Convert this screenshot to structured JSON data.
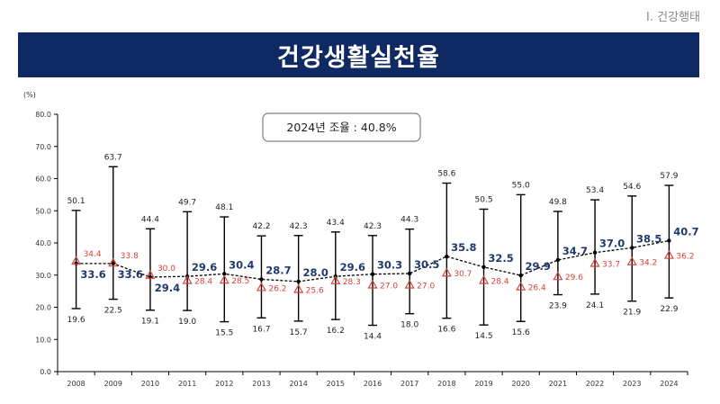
{
  "section_label": "Ⅰ. 건강행태",
  "colors": {
    "title_bg": "#0f2a63",
    "main_series": "#1f3a6e",
    "sub_series": "#d9413a",
    "errorbar": "#000000"
  },
  "chart_data": {
    "type": "line",
    "title": "건강생활실천율",
    "annotation": "2024년 조율 : 40.8%",
    "ylabel": "(%)",
    "ylim": [
      0,
      80
    ],
    "yticks": [
      "0.0",
      "10.0",
      "20.0",
      "30.0",
      "40.0",
      "50.0",
      "60.0",
      "70.0",
      "80.0"
    ],
    "categories": [
      "2008",
      "2009",
      "2010",
      "2011",
      "2012",
      "2013",
      "2014",
      "2015",
      "2016",
      "2017",
      "2018",
      "2019",
      "2020",
      "2021",
      "2022",
      "2023",
      "2024"
    ],
    "series": [
      {
        "values": [
          33.6,
          33.6,
          29.4,
          29.6,
          30.4,
          28.7,
          28.0,
          29.6,
          30.3,
          30.5,
          35.8,
          32.5,
          29.9,
          34.7,
          37.0,
          38.5,
          40.7
        ],
        "labels": [
          "33.6",
          "33.6",
          "29.4",
          "29.6",
          "30.4",
          "28.7",
          "28.0",
          "29.6",
          "30.3",
          "30.5",
          "35.8",
          "32.5",
          "29.9",
          "34.7",
          "37.0",
          "38.5",
          "40.7"
        ]
      },
      {
        "values": [
          34.4,
          33.8,
          30.0,
          28.4,
          28.5,
          26.2,
          25.6,
          28.3,
          27.0,
          27.0,
          30.7,
          28.4,
          26.4,
          29.6,
          33.7,
          34.2,
          36.2
        ],
        "labels": [
          "34.4",
          "33.8",
          "30.0",
          "28.4",
          "28.5",
          "26.2",
          "25.6",
          "28.3",
          "27.0",
          "27.0",
          "30.7",
          "28.4",
          "26.4",
          "29.6",
          "33.7",
          "34.2",
          "36.2"
        ]
      }
    ],
    "max": [
      50.1,
      63.7,
      44.4,
      49.7,
      48.1,
      42.2,
      42.3,
      43.4,
      42.3,
      44.3,
      58.6,
      50.5,
      55.0,
      49.8,
      53.4,
      54.6,
      57.9
    ],
    "max_labels": [
      "50.1",
      "63.7",
      "44.4",
      "49.7",
      "48.1",
      "42.2",
      "42.3",
      "43.4",
      "42.3",
      "44.3",
      "58.6",
      "50.5",
      "55.0",
      "49.8",
      "53.4",
      "54.6",
      "57.9"
    ],
    "min": [
      19.6,
      22.5,
      19.1,
      19.0,
      15.5,
      16.7,
      15.7,
      16.2,
      14.4,
      18.0,
      16.6,
      14.5,
      15.6,
      23.9,
      24.1,
      21.9,
      22.9
    ],
    "min_labels": [
      "19.6",
      "22.5",
      "19.1",
      "19.0",
      "15.5",
      "16.7",
      "15.7",
      "16.2",
      "14.4",
      "18.0",
      "16.6",
      "14.5",
      "15.6",
      "23.9",
      "24.1",
      "21.9",
      "22.9"
    ],
    "grid": false,
    "legend": "none"
  }
}
